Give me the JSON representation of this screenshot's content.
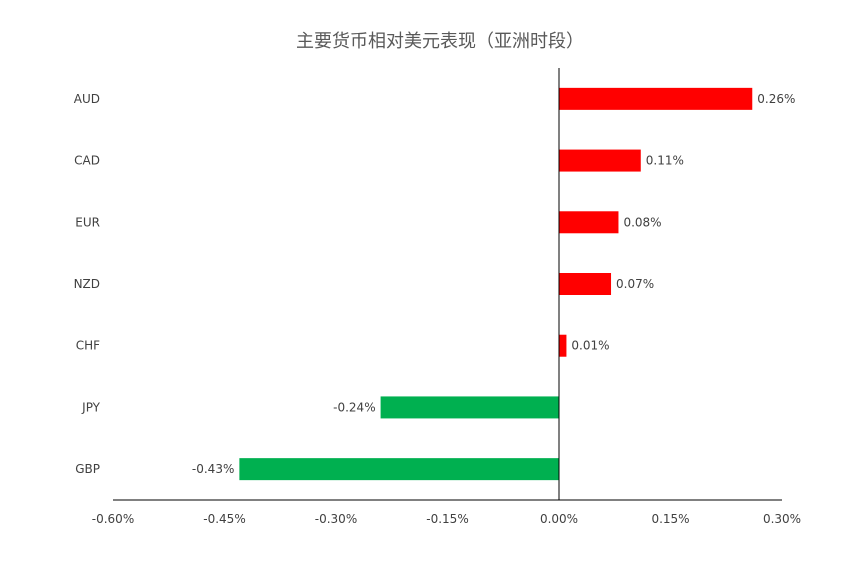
{
  "chart_data": {
    "type": "bar",
    "orientation": "horizontal",
    "title": "主要货币相对美元表现（亚洲时段）",
    "xlabel": "",
    "ylabel": "",
    "categories": [
      "AUD",
      "CAD",
      "EUR",
      "NZD",
      "CHF",
      "JPY",
      "GBP"
    ],
    "values": [
      0.26,
      0.11,
      0.08,
      0.07,
      0.01,
      -0.24,
      -0.43
    ],
    "data_labels": [
      "0.26%",
      "0.11%",
      "0.08%",
      "0.07%",
      "0.01%",
      "-0.24%",
      "-0.43%"
    ],
    "xlim": [
      -0.6,
      0.3
    ],
    "x_ticks": [
      -0.6,
      -0.45,
      -0.3,
      -0.15,
      0.0,
      0.15,
      0.3
    ],
    "x_tick_labels": [
      "-0.60%",
      "-0.45%",
      "-0.30%",
      "-0.15%",
      "0.00%",
      "0.15%",
      "0.30%"
    ],
    "grid": false,
    "legend": "none",
    "colors": {
      "positive": "#ff0000",
      "negative": "#00b050",
      "axis": "#000000",
      "text": "#404040"
    }
  }
}
